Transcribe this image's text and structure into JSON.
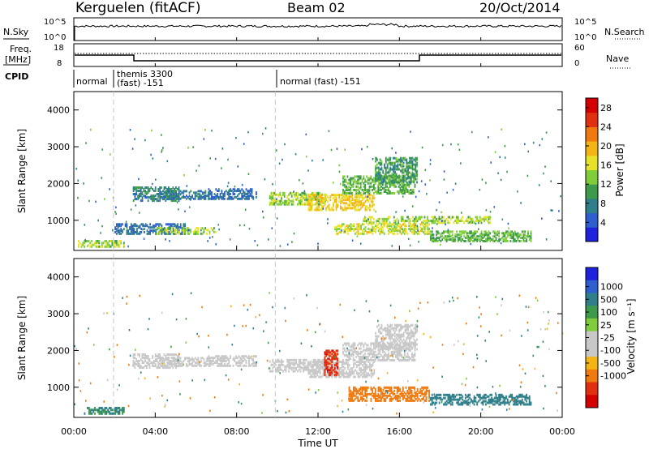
{
  "header": {
    "station": "Kerguelen (fitACF)",
    "beam": "Beam 02",
    "date": "20/Oct/2014"
  },
  "top_panels": {
    "sky_label": "N.Sky",
    "search_label": "N.Search",
    "sky_ticks": [
      "10^5",
      "10^0"
    ],
    "search_ticks": [
      "10^5",
      "10^0"
    ],
    "freq_label_1": "Freq.",
    "freq_label_2": "[MHz]",
    "freq_ticks": [
      "18",
      "8"
    ],
    "nave_label": "Nave",
    "nave_ticks": [
      "60",
      "0"
    ],
    "cpid_label": "CPID",
    "cpid_segments": [
      {
        "line1": "normal",
        "line2": "",
        "start": 0.0,
        "end": 1.95
      },
      {
        "line1": "themis 3300",
        "line2": "(fast) -151",
        "start": 1.95,
        "end": 9.9
      },
      {
        "line1": "normal (fast) -151",
        "line2": "",
        "start": 9.9,
        "end": 24.0
      }
    ]
  },
  "chart_data": [
    {
      "type": "heatmap",
      "name": "power",
      "ylabel": "Slant Range [km]",
      "xlim": [
        0,
        24
      ],
      "ylim": [
        180,
        4500
      ],
      "yticks": [
        "1000",
        "2000",
        "3000",
        "4000"
      ],
      "colorbar": {
        "label": "Power [dB]",
        "ticks": [
          "4",
          "8",
          "12",
          "16",
          "20",
          "24",
          "28"
        ],
        "tick_values": [
          4,
          8,
          12,
          16,
          20,
          24,
          28
        ],
        "range": [
          0,
          30
        ],
        "colors": [
          "#1e22dc",
          "#2f5fcf",
          "#2e7f8a",
          "#3d9a4a",
          "#7fcd3a",
          "#e8e12a",
          "#f5b416",
          "#f07a10",
          "#e03010",
          "#d40000"
        ]
      },
      "blobs": [
        {
          "t0": 2.9,
          "t1": 5.2,
          "r0": 1500,
          "r1": 1900,
          "v": 8
        },
        {
          "t0": 4.2,
          "t1": 6.8,
          "r0": 1550,
          "r1": 1800,
          "v": 7
        },
        {
          "t0": 6.6,
          "t1": 9.0,
          "r0": 1550,
          "r1": 1850,
          "v": 6
        },
        {
          "t0": 9.6,
          "t1": 12.4,
          "r0": 1400,
          "r1": 1750,
          "v": 14
        },
        {
          "t0": 11.5,
          "t1": 14.8,
          "r0": 1250,
          "r1": 1700,
          "v": 18
        },
        {
          "t0": 13.2,
          "t1": 16.8,
          "r0": 1700,
          "r1": 2200,
          "v": 12
        },
        {
          "t0": 14.8,
          "t1": 16.9,
          "r0": 2000,
          "r1": 2700,
          "v": 10
        },
        {
          "t0": 14.2,
          "t1": 20.5,
          "r0": 900,
          "r1": 1100,
          "v": 14
        },
        {
          "t0": 12.8,
          "t1": 17.5,
          "r0": 600,
          "r1": 900,
          "v": 16
        },
        {
          "t0": 0.2,
          "t1": 2.5,
          "r0": 250,
          "r1": 450,
          "v": 14
        },
        {
          "t0": 2.0,
          "t1": 5.5,
          "r0": 600,
          "r1": 900,
          "v": 6
        },
        {
          "t0": 4.0,
          "t1": 7.0,
          "r0": 600,
          "r1": 800,
          "v": 14
        },
        {
          "t0": 17.5,
          "t1": 22.5,
          "r0": 400,
          "r1": 700,
          "v": 12
        }
      ]
    },
    {
      "type": "heatmap",
      "name": "velocity",
      "ylabel": "Slant Range [km]",
      "xlabel": "Time UT",
      "xlim": [
        0,
        24
      ],
      "ylim": [
        180,
        4500
      ],
      "yticks": [
        "1000",
        "2000",
        "3000",
        "4000"
      ],
      "xticks": [
        "00:00",
        "04:00",
        "08:00",
        "12:00",
        "16:00",
        "20:00",
        "00:00"
      ],
      "xtick_values": [
        0,
        4,
        8,
        12,
        16,
        20,
        24
      ],
      "colorbar": {
        "label": "Velocity [m s⁻¹]",
        "ticks": [
          "1000",
          "500",
          "100",
          "25",
          "-25",
          "-100",
          "-500",
          "-1000"
        ],
        "tick_values": [
          1000,
          500,
          100,
          25,
          -25,
          -100,
          -500,
          -1000
        ],
        "colors": [
          "#1e22dc",
          "#2f5fcf",
          "#2e7f8a",
          "#3d9a4a",
          "#7fcd3a",
          "#c8c8c8",
          "#c8c8c8",
          "#f5b416",
          "#f07a10",
          "#e03010",
          "#d40000"
        ]
      },
      "blobs": [
        {
          "t0": 2.9,
          "t1": 5.2,
          "r0": 1500,
          "r1": 1900,
          "v": 0
        },
        {
          "t0": 4.2,
          "t1": 6.8,
          "r0": 1550,
          "r1": 1800,
          "v": 0
        },
        {
          "t0": 6.6,
          "t1": 9.0,
          "r0": 1550,
          "r1": 1850,
          "v": 0
        },
        {
          "t0": 9.6,
          "t1": 12.4,
          "r0": 1400,
          "r1": 1750,
          "v": 0
        },
        {
          "t0": 11.5,
          "t1": 14.8,
          "r0": 1250,
          "r1": 1700,
          "v": 0
        },
        {
          "t0": 13.2,
          "t1": 16.8,
          "r0": 1700,
          "r1": 2200,
          "v": 0
        },
        {
          "t0": 14.8,
          "t1": 16.9,
          "r0": 2000,
          "r1": 2700,
          "v": 0
        },
        {
          "t0": 12.3,
          "t1": 13.0,
          "r0": 1300,
          "r1": 2000,
          "v": -600
        },
        {
          "t0": 13.5,
          "t1": 17.5,
          "r0": 600,
          "r1": 1000,
          "v": -120
        },
        {
          "t0": 17.5,
          "t1": 22.5,
          "r0": 500,
          "r1": 800,
          "v": 110
        },
        {
          "t0": 0.5,
          "t1": 2.5,
          "r0": 250,
          "r1": 450,
          "v": 60
        }
      ]
    }
  ],
  "colors": {
    "frame": "#000000",
    "dashed": "#c8c8c8",
    "curve": "#000000"
  }
}
